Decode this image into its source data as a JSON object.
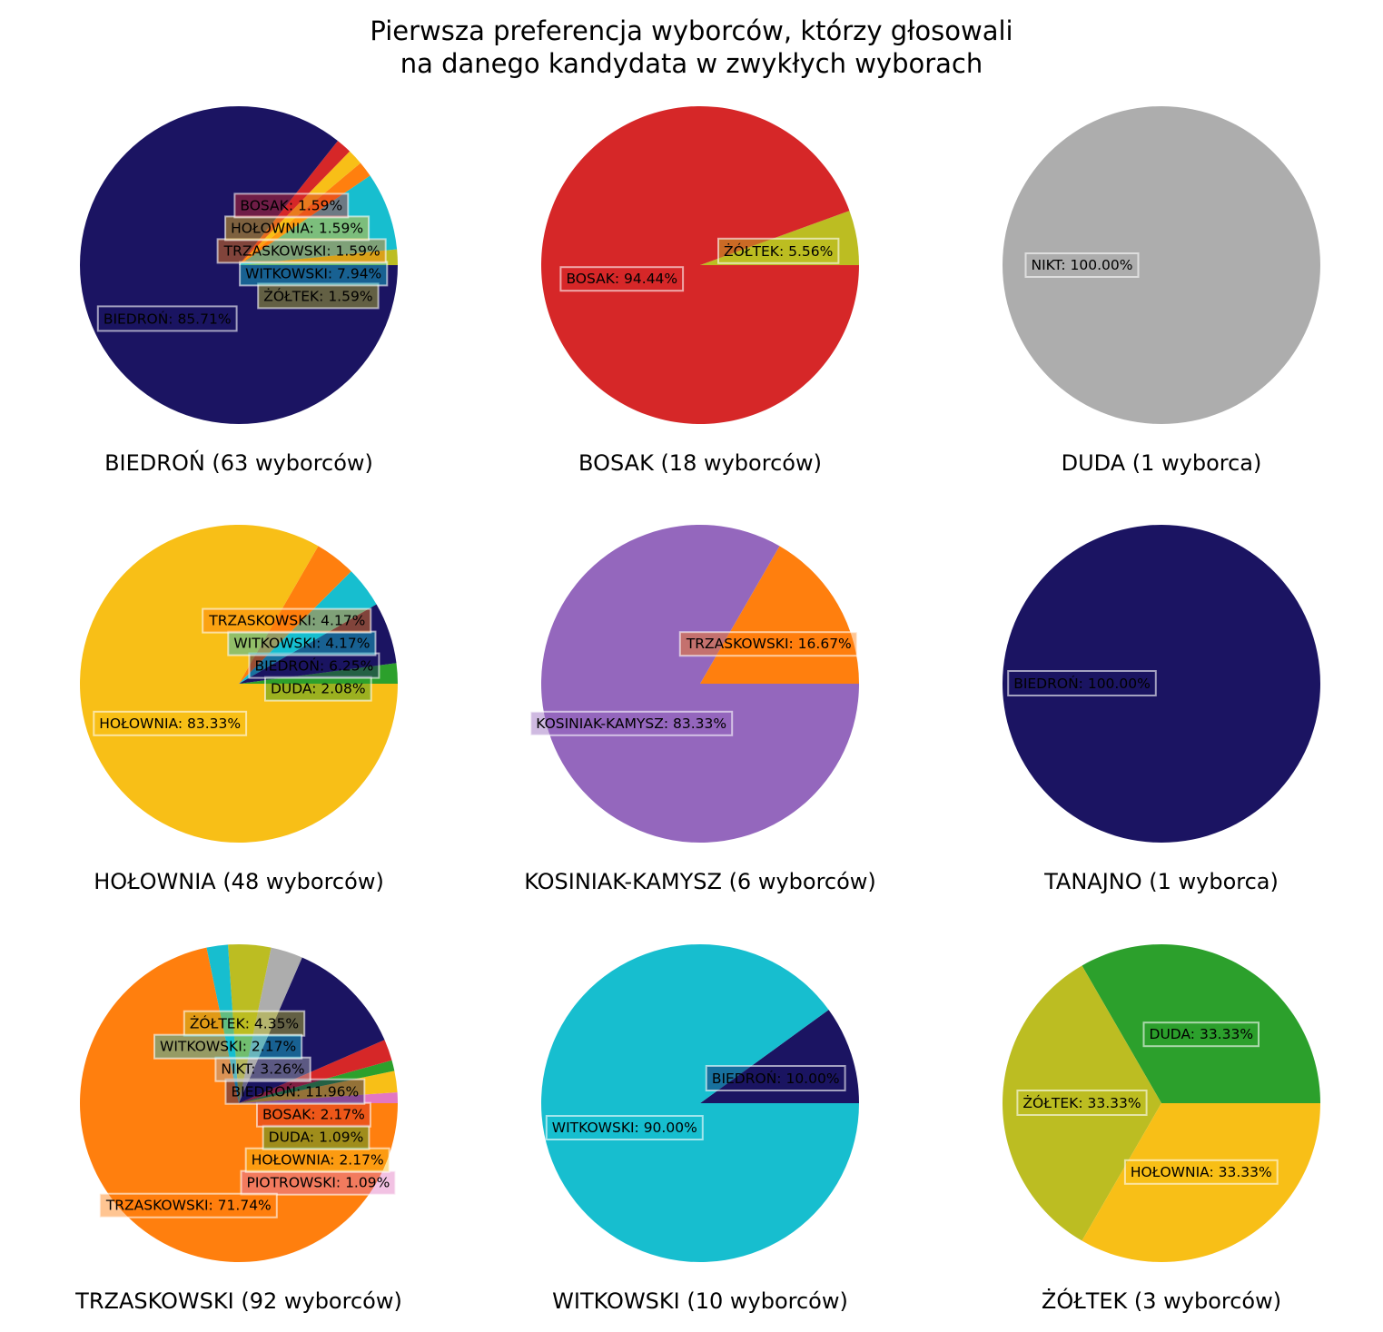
{
  "title_lines": [
    "Pierwsza preferencja wyborców, którzy głosowali",
    "na danego kandydata w zwykłych wyborach"
  ],
  "colors": {
    "BIEDROŃ": "#1b1462",
    "BOSAK": "#d62728",
    "DUDA": "#2ca02c",
    "HOŁOWNIA": "#f8bf17",
    "KOSINIAK-KAMYSZ": "#9467bd",
    "PIOTROWSKI": "#e377c2",
    "TRZASKOWSKI": "#ff7f0e",
    "WITKOWSKI": "#17becf",
    "ŻÓŁTEK": "#bcbd22",
    "NIKT": "#adadad",
    "TANAJNO": "#8c564b"
  },
  "chart_data": [
    {
      "type": "pie",
      "title": "BIEDROŃ (63 wyborców)",
      "slices": [
        {
          "label": "ŻÓŁTEK",
          "value": 1.59,
          "text": "ŻÓŁTEK: 1.59%"
        },
        {
          "label": "WITKOWSKI",
          "value": 7.94,
          "text": "WITKOWSKI: 7.94%"
        },
        {
          "label": "TRZASKOWSKI",
          "value": 1.59,
          "text": "TRZASKOWSKI: 1.59%"
        },
        {
          "label": "HOŁOWNIA",
          "value": 1.59,
          "text": "HOŁOWNIA: 1.59%"
        },
        {
          "label": "BOSAK",
          "value": 1.59,
          "text": "BOSAK: 1.59%"
        },
        {
          "label": "BIEDROŃ",
          "value": 85.71,
          "text": "BIEDROŃ: 85.71%"
        }
      ]
    },
    {
      "type": "pie",
      "title": "BOSAK (18 wyborców)",
      "slices": [
        {
          "label": "ŻÓŁTEK",
          "value": 5.56,
          "text": "ŻÓŁTEK: 5.56%"
        },
        {
          "label": "BOSAK",
          "value": 94.44,
          "text": "BOSAK: 94.44%"
        }
      ]
    },
    {
      "type": "pie",
      "title": "DUDA (1 wyborca)",
      "slices": [
        {
          "label": "NIKT",
          "value": 100.0,
          "text": "NIKT: 100.00%"
        }
      ]
    },
    {
      "type": "pie",
      "title": "HOŁOWNIA (48 wyborców)",
      "slices": [
        {
          "label": "DUDA",
          "value": 2.08,
          "text": "DUDA: 2.08%"
        },
        {
          "label": "BIEDROŃ",
          "value": 6.25,
          "text": "BIEDROŃ: 6.25%"
        },
        {
          "label": "WITKOWSKI",
          "value": 4.17,
          "text": "WITKOWSKI: 4.17%"
        },
        {
          "label": "TRZASKOWSKI",
          "value": 4.17,
          "text": "TRZASKOWSKI: 4.17%"
        },
        {
          "label": "HOŁOWNIA",
          "value": 83.33,
          "text": "HOŁOWNIA: 83.33%"
        }
      ]
    },
    {
      "type": "pie",
      "title": "KOSINIAK-KAMYSZ (6 wyborców)",
      "slices": [
        {
          "label": "TRZASKOWSKI",
          "value": 16.67,
          "text": "TRZASKOWSKI: 16.67%"
        },
        {
          "label": "KOSINIAK-KAMYSZ",
          "value": 83.33,
          "text": "KOSINIAK-KAMYSZ: 83.33%"
        }
      ]
    },
    {
      "type": "pie",
      "title": "TANAJNO (1 wyborca)",
      "slices": [
        {
          "label": "BIEDROŃ",
          "value": 100.0,
          "text": "BIEDROŃ: 100.00%"
        }
      ]
    },
    {
      "type": "pie",
      "title": "TRZASKOWSKI (92 wyborców)",
      "slices": [
        {
          "label": "PIOTROWSKI",
          "value": 1.09,
          "text": "PIOTROWSKI: 1.09%"
        },
        {
          "label": "HOŁOWNIA",
          "value": 2.17,
          "text": "HOŁOWNIA: 2.17%"
        },
        {
          "label": "DUDA",
          "value": 1.09,
          "text": "DUDA: 1.09%"
        },
        {
          "label": "BOSAK",
          "value": 2.17,
          "text": "BOSAK: 2.17%"
        },
        {
          "label": "BIEDROŃ",
          "value": 11.96,
          "text": "BIEDROŃ: 11.96%"
        },
        {
          "label": "NIKT",
          "value": 3.26,
          "text": "NIKT: 3.26%"
        },
        {
          "label": "ŻÓŁTEK",
          "value": 4.35,
          "text": "ŻÓŁTEK: 4.35%"
        },
        {
          "label": "WITKOWSKI",
          "value": 2.17,
          "text": "WITKOWSKI: 2.17%"
        },
        {
          "label": "TRZASKOWSKI",
          "value": 71.74,
          "text": "TRZASKOWSKI: 71.74%"
        }
      ]
    },
    {
      "type": "pie",
      "title": "WITKOWSKI (10 wyborców)",
      "slices": [
        {
          "label": "BIEDROŃ",
          "value": 10.0,
          "text": "BIEDROŃ: 10.00%"
        },
        {
          "label": "WITKOWSKI",
          "value": 90.0,
          "text": "WITKOWSKI: 90.00%"
        }
      ]
    },
    {
      "type": "pie",
      "title": "ŻÓŁTEK (3 wyborców)",
      "slices": [
        {
          "label": "DUDA",
          "value": 33.33,
          "text": "DUDA: 33.33%"
        },
        {
          "label": "ŻÓŁTEK",
          "value": 33.33,
          "text": "ŻÓŁTEK: 33.33%"
        },
        {
          "label": "HOŁOWNIA",
          "value": 33.33,
          "text": "HOŁOWNIA: 33.33%"
        }
      ]
    }
  ]
}
